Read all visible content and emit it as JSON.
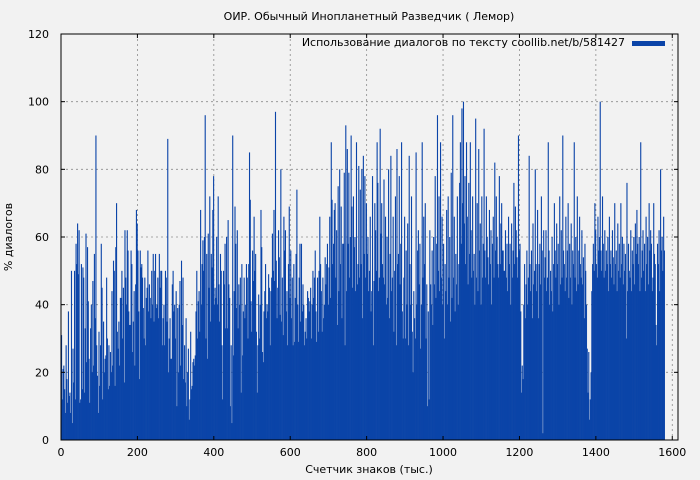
{
  "chart_data": {
    "type": "bar",
    "title": "ОИР. Обычный Инопланетный Разведчик ( Лемор)",
    "xlabel": "Счетчик знаков (тыс.)",
    "ylabel": "% диалогов",
    "legend_label": "Использование диалогов по тексту coollib.net/b/581427",
    "legend_position": "top-right",
    "grid": true,
    "xlim": [
      0,
      1615
    ],
    "ylim": [
      0,
      120
    ],
    "xticks": [
      0,
      200,
      400,
      600,
      800,
      1000,
      1200,
      1400,
      1600
    ],
    "yticks": [
      0,
      20,
      40,
      60,
      80,
      100,
      120
    ],
    "bar_color": "#0b44a8",
    "bin_width_kchars": 2,
    "values": [
      31,
      12,
      21,
      22,
      15,
      8,
      28,
      18,
      11,
      38,
      13,
      14,
      8,
      50,
      5,
      27,
      17,
      50,
      12,
      58,
      52,
      64,
      49,
      62,
      11,
      12,
      52,
      15,
      51,
      48,
      14,
      33,
      61,
      23,
      57,
      41,
      24,
      11,
      33,
      40,
      20,
      47,
      22,
      55,
      36,
      90,
      28,
      19,
      8,
      32,
      16,
      28,
      58,
      45,
      12,
      35,
      20,
      24,
      25,
      48,
      30,
      15,
      28,
      16,
      26,
      20,
      44,
      22,
      53,
      50,
      16,
      57,
      70,
      32,
      27,
      35,
      22,
      42,
      42,
      50,
      30,
      45,
      17,
      62,
      48,
      40,
      62,
      56,
      38,
      34,
      34,
      56,
      52,
      26,
      35,
      44,
      22,
      46,
      68,
      64,
      56,
      38,
      18,
      56,
      51,
      52,
      48,
      39,
      30,
      48,
      28,
      42,
      45,
      56,
      38,
      46,
      42,
      36,
      50,
      40,
      55,
      35,
      50,
      55,
      39,
      40,
      48,
      36,
      55,
      45,
      50,
      50,
      28,
      36,
      40,
      28,
      50,
      48,
      35,
      89,
      20,
      30,
      36,
      24,
      24,
      46,
      50,
      38,
      40,
      30,
      44,
      10,
      39,
      20,
      40,
      47,
      22,
      53,
      34,
      48,
      18,
      28,
      17,
      36,
      10,
      20,
      27,
      6,
      12,
      32,
      15,
      16,
      23,
      24,
      22,
      25,
      38,
      50,
      30,
      41,
      44,
      32,
      68,
      40,
      52,
      59,
      50,
      60,
      96,
      30,
      55,
      24,
      61,
      45,
      72,
      35,
      55,
      51,
      68,
      78,
      40,
      45,
      42,
      60,
      40,
      72,
      46,
      35,
      55,
      50,
      28,
      12,
      50,
      46,
      58,
      33,
      60,
      33,
      65,
      46,
      42,
      10,
      28,
      5,
      90,
      25,
      44,
      69,
      58,
      39,
      62,
      33,
      46,
      40,
      48,
      14,
      52,
      25,
      38,
      48,
      36,
      40,
      52,
      48,
      30,
      52,
      85,
      71,
      41,
      32,
      56,
      47,
      66,
      50,
      55,
      32,
      14,
      28,
      43,
      30,
      40,
      68,
      57,
      26,
      23,
      38,
      44,
      52,
      36,
      40,
      38,
      49,
      45,
      28,
      44,
      48,
      61,
      50,
      68,
      47,
      97,
      53,
      36,
      45,
      62,
      54,
      37,
      80,
      35,
      48,
      31,
      66,
      56,
      62,
      38,
      44,
      28,
      52,
      69,
      42,
      56,
      36,
      48,
      28,
      52,
      29,
      42,
      55,
      74,
      40,
      29,
      48,
      58,
      35,
      58,
      38,
      46,
      40,
      28,
      32,
      36,
      30,
      44,
      42,
      38,
      41,
      45,
      30,
      40,
      50,
      42,
      48,
      56,
      38,
      29,
      48,
      32,
      50,
      66,
      52,
      44,
      32,
      48,
      36,
      40,
      54,
      46,
      52,
      58,
      40,
      51,
      66,
      42,
      88,
      71,
      52,
      58,
      68,
      70,
      48,
      62,
      34,
      75,
      44,
      80,
      52,
      69,
      36,
      58,
      58,
      79,
      28,
      93,
      44,
      86,
      58,
      79,
      48,
      60,
      90,
      69,
      45,
      72,
      57,
      60,
      44,
      88,
      46,
      52,
      81,
      48,
      74,
      52,
      80,
      36,
      84,
      55,
      78,
      48,
      70,
      55,
      60,
      44,
      50,
      66,
      38,
      44,
      78,
      28,
      47,
      70,
      62,
      50,
      88,
      76,
      44,
      48,
      92,
      61,
      70,
      52,
      48,
      77,
      46,
      66,
      40,
      60,
      42,
      80,
      36,
      55,
      84,
      44,
      48,
      66,
      32,
      50,
      72,
      28,
      86,
      52,
      55,
      78,
      46,
      58,
      88,
      38,
      30,
      48,
      66,
      30,
      56,
      40,
      64,
      28,
      84,
      52,
      40,
      72,
      32,
      20,
      44,
      36,
      30,
      85,
      40,
      56,
      62,
      46,
      58,
      27,
      40,
      88,
      48,
      66,
      52,
      70,
      30,
      46,
      10,
      38,
      12,
      62,
      46,
      40,
      56,
      34,
      60,
      46,
      78,
      42,
      58,
      96,
      50,
      72,
      44,
      88,
      48,
      66,
      40,
      58,
      30,
      52,
      44,
      68,
      40,
      72,
      48,
      60,
      35,
      79,
      42,
      96,
      48,
      66,
      38,
      55,
      46,
      72,
      40,
      52,
      76,
      88,
      58,
      98,
      70,
      100,
      64,
      78,
      52,
      88,
      66,
      46,
      76,
      55,
      88,
      62,
      48,
      72,
      50,
      55,
      40,
      95,
      48,
      70,
      44,
      86,
      56,
      64,
      40,
      72,
      48,
      58,
      92,
      56,
      48,
      72,
      60,
      54,
      46,
      68,
      52,
      62,
      40,
      58,
      66,
      48,
      82,
      56,
      72,
      60,
      52,
      48,
      78,
      52,
      64,
      70,
      56,
      56,
      50,
      50,
      62,
      48,
      58,
      44,
      66,
      52,
      58,
      40,
      64,
      48,
      56,
      76,
      52,
      69,
      62,
      54,
      48,
      90,
      56,
      58,
      38,
      14,
      22,
      18,
      40,
      52,
      36,
      46,
      56,
      40,
      48,
      84,
      52,
      44,
      56,
      36,
      64,
      46,
      50,
      80,
      52,
      44,
      68,
      36,
      52,
      58,
      46,
      72,
      56,
      2,
      62,
      48,
      54,
      62,
      44,
      48,
      88,
      56,
      40,
      50,
      44,
      60,
      38,
      52,
      70,
      56,
      48,
      64,
      52,
      58,
      40,
      72,
      46,
      62,
      48,
      90,
      56,
      52,
      44,
      66,
      48,
      56,
      70,
      42,
      58,
      48,
      64,
      40,
      56,
      52,
      88,
      48,
      60,
      44,
      72,
      46,
      56,
      66,
      52,
      48,
      62,
      46,
      54,
      36,
      58,
      50,
      40,
      27,
      14,
      26,
      6,
      12,
      20,
      44,
      52,
      58,
      50,
      70,
      62,
      52,
      48,
      66,
      56,
      60,
      100,
      56,
      50,
      72,
      58,
      48,
      62,
      50,
      56,
      52,
      60,
      44,
      66,
      52,
      56,
      48,
      62,
      54,
      46,
      70,
      52,
      56,
      44,
      64,
      50,
      58,
      48,
      70,
      52,
      60,
      46,
      58,
      50,
      55,
      30,
      76,
      44,
      58,
      50,
      48,
      62,
      44,
      56,
      52,
      60,
      46,
      64,
      55,
      68,
      58,
      52,
      60,
      44,
      88,
      48,
      56,
      62,
      50,
      58,
      44,
      66,
      52,
      60,
      46,
      70,
      56,
      62,
      58,
      44,
      48,
      70,
      55,
      52,
      34,
      28,
      58,
      52,
      62,
      44,
      80,
      56,
      60,
      50,
      66,
      56
    ]
  }
}
